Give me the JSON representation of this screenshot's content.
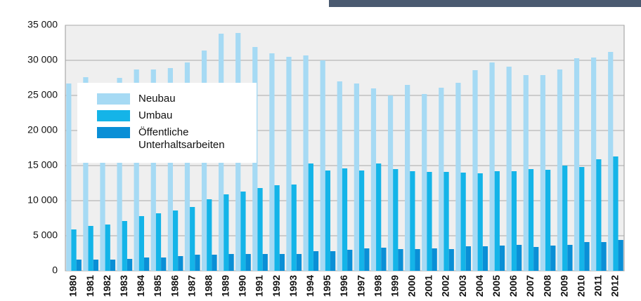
{
  "chart_data": {
    "type": "bar",
    "categories": [
      "1980",
      "1981",
      "1982",
      "1983",
      "1984",
      "1985",
      "1986",
      "1987",
      "1988",
      "1989",
      "1990",
      "1991",
      "1992",
      "1993",
      "1994",
      "1995",
      "1996",
      "1997",
      "1998",
      "1999",
      "2000",
      "2001",
      "2002",
      "2003",
      "2004",
      "2005",
      "2006",
      "2007",
      "2008",
      "2009",
      "2010",
      "2011",
      "2012"
    ],
    "series": [
      {
        "name": "Neubau",
        "color": "#a6daf4",
        "values": [
          26700,
          27600,
          26600,
          27500,
          28700,
          28700,
          28900,
          29700,
          31400,
          33800,
          33900,
          31900,
          31000,
          30500,
          30700,
          30000,
          27000,
          26700,
          26000,
          25000,
          26500,
          25200,
          26100,
          26800,
          28600,
          29700,
          29100,
          27900,
          27900,
          28700,
          30300,
          30400,
          31200
        ]
      },
      {
        "name": "Umbau",
        "color": "#14b4e8",
        "values": [
          5900,
          6400,
          6600,
          7100,
          7800,
          8200,
          8600,
          9100,
          10200,
          10900,
          11300,
          11800,
          12200,
          12300,
          15300,
          14300,
          14600,
          14300,
          15300,
          14500,
          14200,
          14100,
          14100,
          14000,
          13900,
          14200,
          14200,
          14500,
          14400,
          15000,
          14800,
          15900,
          16300
        ]
      },
      {
        "name": "Öffentliche Unterhaltsarbeiten",
        "color": "#0a8fd6",
        "values": [
          1600,
          1600,
          1600,
          1700,
          1900,
          1900,
          2100,
          2300,
          2300,
          2400,
          2400,
          2400,
          2400,
          2400,
          2800,
          2800,
          3000,
          3200,
          3300,
          3100,
          3100,
          3200,
          3100,
          3500,
          3500,
          3600,
          3700,
          3400,
          3600,
          3700,
          4100,
          4100,
          4400
        ]
      }
    ],
    "ylim": [
      0,
      35000
    ],
    "yticks": [
      0,
      {
        "value": 5000,
        "label": "5 000"
      },
      {
        "value": 10000,
        "label": "10 000"
      },
      {
        "value": 15000,
        "label": "15 000"
      },
      {
        "value": 20000,
        "label": "20 000"
      },
      {
        "value": 25000,
        "label": "25 000"
      },
      {
        "value": 30000,
        "label": "30 000"
      },
      {
        "value": 35000,
        "label": "35 000"
      }
    ],
    "grid": true,
    "legend": "upper left"
  }
}
